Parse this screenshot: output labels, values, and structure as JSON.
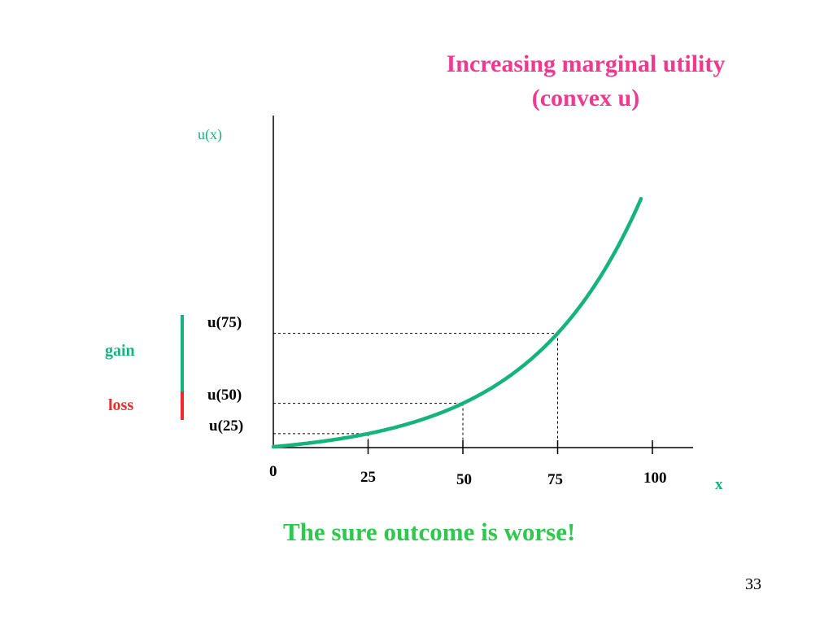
{
  "slide": {
    "title_line1": "Increasing marginal utility",
    "title_line2": "(convex u)",
    "footer_text": "The sure outcome is worse!",
    "page_number": "33"
  },
  "colors": {
    "title": "#f0398f",
    "curve": "#16b37c",
    "gain": "#16b37c",
    "loss": "#ee2a2a",
    "footer": "#2ec84c"
  },
  "chart_data": {
    "type": "line",
    "ylabel": "u(x)",
    "xlabel": "x",
    "origin_label": "0",
    "x_ticks": [
      {
        "value": 25,
        "label": "25"
      },
      {
        "value": 50,
        "label": "50"
      },
      {
        "value": 75,
        "label": "75"
      },
      {
        "value": 100,
        "label": "100"
      }
    ],
    "y_markers": [
      {
        "x": 25,
        "label": "u(25)"
      },
      {
        "x": 50,
        "label": "u(50)"
      },
      {
        "x": 75,
        "label": "u(75)"
      }
    ],
    "curve": "convex",
    "legend": {
      "gain_label": "gain",
      "loss_label": "loss"
    }
  }
}
